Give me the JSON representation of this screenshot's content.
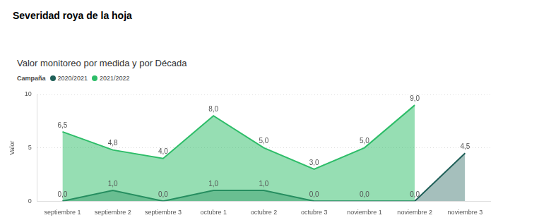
{
  "heading": "Severidad roya de la hoja",
  "chart_data": {
    "type": "area",
    "title": "Valor monitoreo por medida y por Década",
    "legend_title": "Campaña",
    "y_label": "Valor",
    "categories": [
      "septiembre 1",
      "septiembre 2",
      "septiembre 3",
      "octubre 1",
      "octubre 2",
      "octubre 3",
      "noviembre 1",
      "noviembre 2",
      "noviembre 3"
    ],
    "series": [
      {
        "name": "2020/2021",
        "color": "#1f5f58",
        "values": [
          0,
          1,
          0,
          1,
          1,
          0,
          0,
          0,
          4.5
        ],
        "value_labels": [
          "0,0",
          "1,0",
          "0,0",
          "1,0",
          "1,0",
          "0,0",
          "0,0",
          "0,0",
          "4,5"
        ]
      },
      {
        "name": "2021/2022",
        "color": "#2dbd68",
        "values": [
          6.5,
          4.8,
          4.0,
          8.0,
          5.0,
          3.0,
          5.0,
          9.0,
          null
        ],
        "value_labels": [
          "6,5",
          "4,8",
          "4,0",
          "8,0",
          "5,0",
          "3,0",
          "5,0",
          "9,0",
          null
        ]
      }
    ],
    "ylim": [
      0,
      10
    ],
    "yticks": [
      0,
      5,
      10
    ],
    "grid": true,
    "legend": "top-left",
    "data_labels": true
  }
}
